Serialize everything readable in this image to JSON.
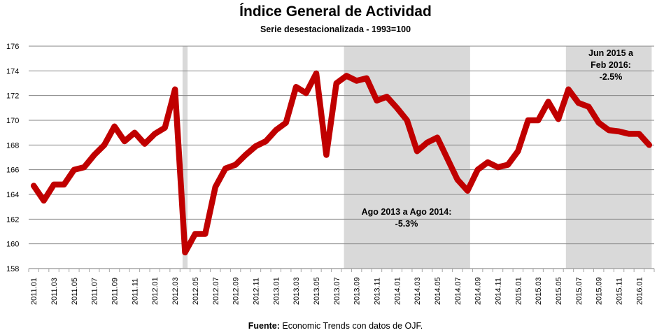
{
  "chart_data": {
    "type": "line",
    "title": "Índice General de Actividad",
    "subtitle": "Serie desestacionalizada - 1993=100",
    "source_label": "Fuente:",
    "source_text": " Economic Trends con datos de OJF.",
    "xlabel": "",
    "ylabel": "",
    "ylim": [
      158,
      176
    ],
    "yticks": [
      158,
      160,
      162,
      164,
      166,
      168,
      170,
      172,
      174,
      176
    ],
    "grid": true,
    "legend": "none",
    "series_color": "#C00000",
    "shade_color": "#D9D9D9",
    "x": [
      "2011.01",
      "2011.02",
      "2011.03",
      "2011.04",
      "2011.05",
      "2011.06",
      "2011.07",
      "2011.08",
      "2011.09",
      "2011.10",
      "2011.11",
      "2011.12",
      "2012.01",
      "2012.02",
      "2012.03",
      "2012.04",
      "2012.05",
      "2012.06",
      "2012.07",
      "2012.08",
      "2012.09",
      "2012.10",
      "2012.11",
      "2012.12",
      "2013.01",
      "2013.02",
      "2013.03",
      "2013.04",
      "2013.05",
      "2013.06",
      "2013.07",
      "2013.08",
      "2013.09",
      "2013.10",
      "2013.11",
      "2013.12",
      "2014.01",
      "2014.02",
      "2014.03",
      "2014.04",
      "2014.05",
      "2014.06",
      "2014.07",
      "2014.08",
      "2014.09",
      "2014.10",
      "2014.11",
      "2014.12",
      "2015.01",
      "2015.02",
      "2015.03",
      "2015.04",
      "2015.05",
      "2015.06",
      "2015.07",
      "2015.08",
      "2015.09",
      "2015.10",
      "2015.11",
      "2015.12",
      "2016.01",
      "2016.02"
    ],
    "xtick_labels": [
      "2011.01",
      "2011.03",
      "2011.05",
      "2011.07",
      "2011.09",
      "2011.11",
      "2012.01",
      "2012.03",
      "2012.05",
      "2012.07",
      "2012.09",
      "2012.11",
      "2013.01",
      "2013.03",
      "2013.05",
      "2013.07",
      "2013.09",
      "2013.11",
      "2014.01",
      "2014.03",
      "2014.05",
      "2014.07",
      "2014.09",
      "2014.11",
      "2015.01",
      "2015.03",
      "2015.05",
      "2015.07",
      "2015.09",
      "2015.11",
      "2016.01"
    ],
    "series": [
      {
        "name": "Índice General de Actividad",
        "values": [
          164.7,
          163.5,
          164.8,
          164.8,
          166.0,
          166.2,
          167.2,
          168.0,
          169.5,
          168.3,
          169.0,
          168.1,
          168.9,
          169.4,
          172.5,
          159.3,
          160.8,
          160.8,
          164.6,
          166.1,
          166.4,
          167.2,
          167.9,
          168.3,
          169.2,
          169.8,
          172.7,
          172.2,
          173.8,
          167.2,
          173.0,
          173.6,
          173.2,
          173.4,
          171.6,
          171.9,
          171.0,
          170.0,
          167.5,
          168.2,
          168.6,
          166.9,
          165.2,
          164.3,
          166.0,
          166.6,
          166.2,
          166.4,
          167.5,
          170.0,
          170.0,
          171.5,
          170.1,
          172.5,
          171.4,
          171.1,
          169.8,
          169.2,
          169.1,
          168.9,
          168.9,
          168.0
        ]
      }
    ],
    "shaded_periods": [
      {
        "start": "2012.04",
        "end": "2012.04"
      },
      {
        "start": "2013.08",
        "end": "2014.08"
      },
      {
        "start": "2015.06",
        "end": "2016.02"
      }
    ],
    "annotations": [
      {
        "lines": [
          "Ago 2013 a Ago 2014:",
          "-5.3%"
        ],
        "period": "2013.08-2014.08"
      },
      {
        "lines": [
          "Jun 2015 a",
          "Feb 2016:",
          "-2.5%"
        ],
        "period": "2015.06-2016.02"
      }
    ]
  }
}
